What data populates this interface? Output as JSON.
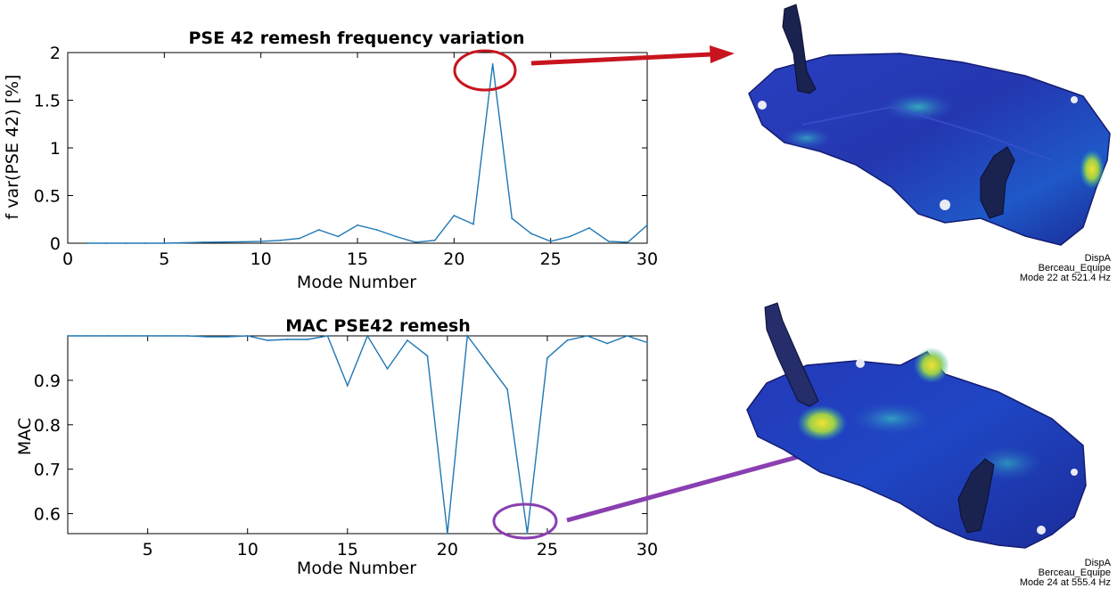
{
  "chart_data": [
    {
      "type": "line",
      "title": "PSE 42 remesh frequency variation",
      "xlabel": "Mode Number",
      "ylabel": "f var(PSE 42) [%]",
      "xlim": [
        0,
        30
      ],
      "ylim": [
        0,
        2
      ],
      "xticks": [
        "0",
        "5",
        "10",
        "15",
        "20",
        "25",
        "30"
      ],
      "yticks": [
        "0",
        "0.5",
        "1",
        "1.5",
        "2"
      ],
      "grid": false,
      "series": [
        {
          "color": "#1f77b4",
          "x": [
            1,
            2,
            3,
            4,
            5,
            6,
            7,
            8,
            9,
            10,
            11,
            12,
            13,
            14,
            15,
            16,
            17,
            18,
            19,
            20,
            21,
            22,
            23,
            24,
            25,
            26,
            27,
            28,
            29,
            30
          ],
          "values": [
            0.0,
            0.0,
            0.0,
            0.0,
            0.0,
            0.005,
            0.01,
            0.012,
            0.015,
            0.02,
            0.03,
            0.05,
            0.14,
            0.07,
            0.19,
            0.14,
            0.07,
            0.01,
            0.03,
            0.29,
            0.2,
            1.88,
            0.26,
            0.1,
            0.02,
            0.07,
            0.16,
            0.02,
            0.01,
            0.19
          ]
        }
      ]
    },
    {
      "type": "line",
      "title": "MAC PSE42 remesh",
      "xlabel": "Mode Number",
      "ylabel": "MAC",
      "xlim": [
        1,
        30
      ],
      "ylim": [
        0.555,
        1.0
      ],
      "xticks": [
        "5",
        "10",
        "15",
        "20",
        "25",
        "30"
      ],
      "yticks": [
        "0.6",
        "0.7",
        "0.8",
        "0.9"
      ],
      "grid": false,
      "series": [
        {
          "color": "#1f77b4",
          "x": [
            1,
            2,
            3,
            4,
            5,
            6,
            7,
            8,
            9,
            10,
            11,
            12,
            13,
            14,
            15,
            16,
            17,
            18,
            19,
            20,
            21,
            22,
            23,
            24,
            25,
            26,
            27,
            28,
            29,
            30
          ],
          "values": [
            1.0,
            1.0,
            1.0,
            1.0,
            1.0,
            1.0,
            1.0,
            0.998,
            0.998,
            1.0,
            0.99,
            0.992,
            0.992,
            1.0,
            0.888,
            1.0,
            0.926,
            0.99,
            0.955,
            0.555,
            1.0,
            0.94,
            0.88,
            0.556,
            0.95,
            0.99,
            1.0,
            0.983,
            1.0,
            0.985
          ]
        }
      ]
    }
  ],
  "annotations": {
    "red_color": "#c8141e",
    "purple_color": "#8a3fb0"
  },
  "images": [
    {
      "caption_lines": [
        "DispA",
        "Berceau_Equipe",
        "Mode 22 at 521.4 Hz"
      ]
    },
    {
      "caption_lines": [
        "DispA",
        "Berceau_Equipe",
        "Mode 24 at 555.4 Hz"
      ]
    }
  ]
}
